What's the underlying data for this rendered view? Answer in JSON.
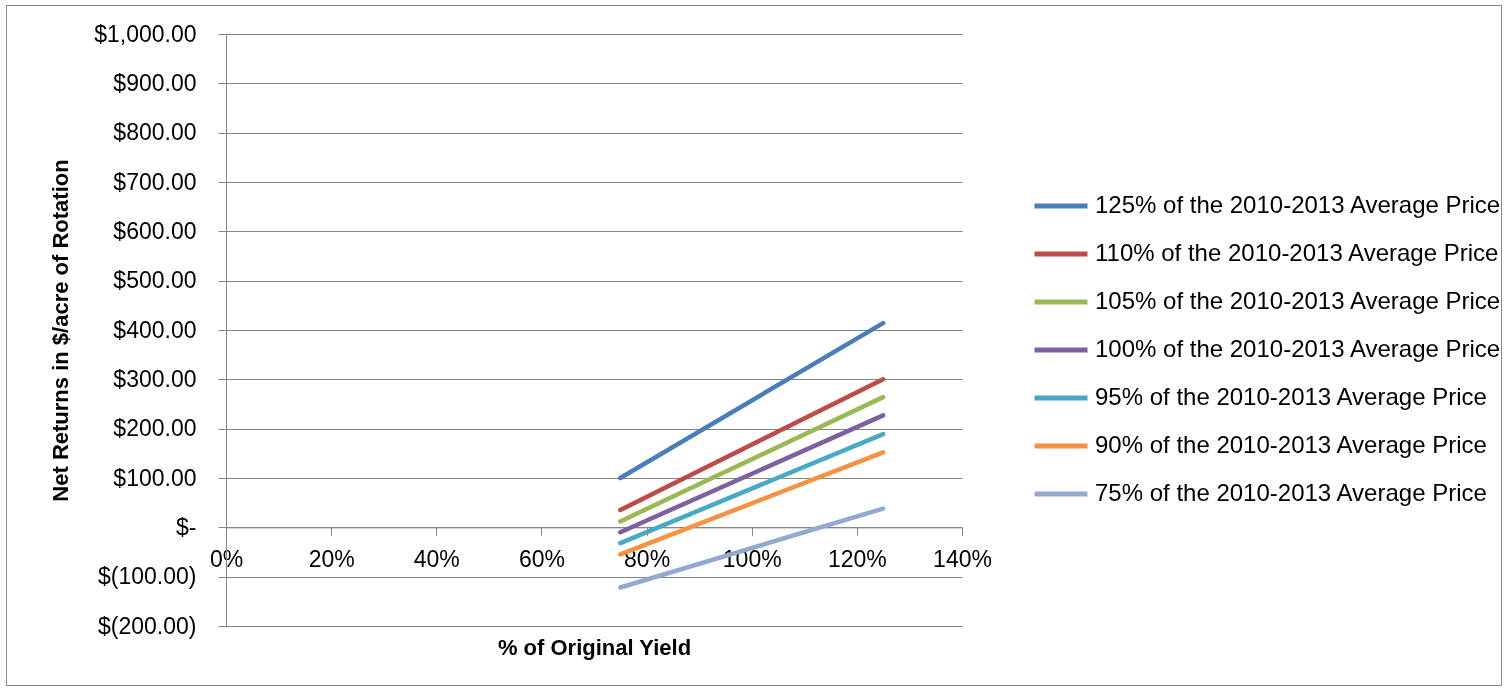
{
  "chart_data": {
    "type": "line",
    "xlabel": "% of Original Yield",
    "ylabel": "Net Returns in $/acre of Rotation",
    "x": [
      75,
      125
    ],
    "xlim": [
      0,
      140
    ],
    "xticks": [
      {
        "value": 0,
        "label": "0%"
      },
      {
        "value": 20,
        "label": "20%"
      },
      {
        "value": 40,
        "label": "40%"
      },
      {
        "value": 60,
        "label": "60%"
      },
      {
        "value": 80,
        "label": "80%"
      },
      {
        "value": 100,
        "label": "100%"
      },
      {
        "value": 120,
        "label": "120%"
      },
      {
        "value": 140,
        "label": "140%"
      }
    ],
    "ylim": [
      -200,
      1000
    ],
    "yticks": [
      {
        "value": -200,
        "label": "$(200.00)"
      },
      {
        "value": -100,
        "label": "$(100.00)"
      },
      {
        "value": 0,
        "label": "$-"
      },
      {
        "value": 100,
        "label": "$100.00"
      },
      {
        "value": 200,
        "label": "$200.00"
      },
      {
        "value": 300,
        "label": "$300.00"
      },
      {
        "value": 400,
        "label": "$400.00"
      },
      {
        "value": 500,
        "label": "$500.00"
      },
      {
        "value": 600,
        "label": "$600.00"
      },
      {
        "value": 700,
        "label": "$700.00"
      },
      {
        "value": 800,
        "label": "$800.00"
      },
      {
        "value": 900,
        "label": "$900.00"
      },
      {
        "value": 1000,
        "label": "$1,000.00"
      }
    ],
    "grid": "y",
    "legend": "right",
    "line_style": "solid",
    "series": [
      {
        "name": "125% of the 2010-2013 Average Price",
        "color": "#4a7ebb",
        "values": [
          100,
          414
        ]
      },
      {
        "name": "110% of the 2010-2013 Average Price",
        "color": "#be4b48",
        "values": [
          35,
          300
        ]
      },
      {
        "name": "105% of the 2010-2013 Average Price",
        "color": "#98b954",
        "values": [
          12,
          264
        ]
      },
      {
        "name": "100% of the 2010-2013 Average Price",
        "color": "#7d60a0",
        "values": [
          -10,
          227
        ]
      },
      {
        "name": "95% of the 2010-2013 Average Price",
        "color": "#46aac5",
        "values": [
          -32,
          189
        ]
      },
      {
        "name": "90% of the 2010-2013 Average Price",
        "color": "#f69240",
        "values": [
          -55,
          152
        ]
      },
      {
        "name": "75% of the 2010-2013 Average Price",
        "color": "#93a9cf",
        "values": [
          -122,
          38
        ]
      }
    ]
  }
}
